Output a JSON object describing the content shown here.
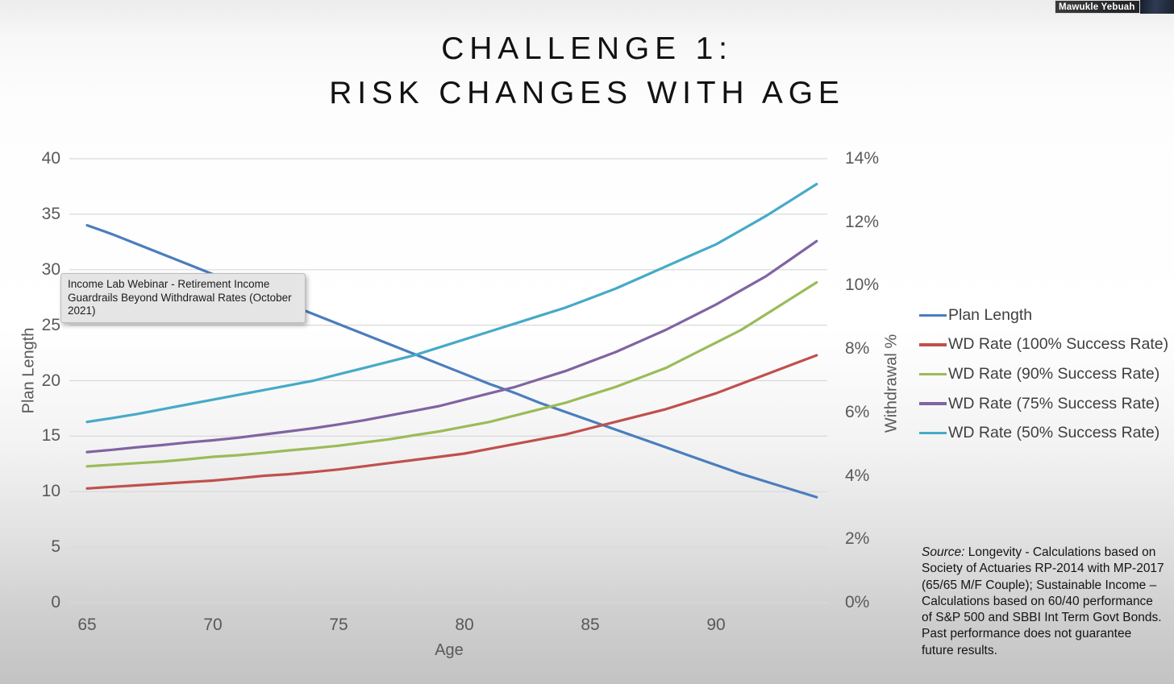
{
  "webcam": {
    "name": "Mawukle Yebuah"
  },
  "title": {
    "line1": "CHALLENGE 1:",
    "line2": "RISK CHANGES WITH AGE"
  },
  "tooltip": {
    "text": "Income Lab Webinar  - Retirement Income Guardrails Beyond Withdrawal Rates (October 2021)"
  },
  "source_note": {
    "label": "Source:",
    "text": " Longevity - Calculations based on Society of Actuaries RP-2014 with MP-2017 (65/65 M/F Couple); Sustainable Income – Calculations based on  60/40 performance of S&P 500 and SBBI Int Term Govt Bonds. Past performance does not guarantee future results."
  },
  "chart_data": {
    "type": "line",
    "title": "CHALLENGE 1: RISK CHANGES WITH AGE",
    "xlabel": "Age",
    "ylabel_left": "Plan Length",
    "ylabel_right": "Withdrawal %",
    "x": [
      65,
      66,
      67,
      68,
      69,
      70,
      71,
      72,
      73,
      74,
      75,
      76,
      77,
      78,
      79,
      80,
      81,
      82,
      83,
      84,
      85,
      86,
      87,
      88,
      89,
      90,
      91,
      92,
      93,
      94
    ],
    "x_ticks": [
      65,
      70,
      75,
      80,
      85,
      90
    ],
    "y_left": {
      "min": 0,
      "max": 40,
      "ticks": [
        40,
        35,
        30,
        25,
        20,
        15,
        10,
        5,
        0
      ]
    },
    "y_right": {
      "min": 0,
      "max": 14,
      "ticks": [
        "14%",
        "12%",
        "10%",
        "8%",
        "6%",
        "4%",
        "2%",
        "0%"
      ]
    },
    "grid": "horizontal",
    "legend_position": "right",
    "series": [
      {
        "name": "Plan Length",
        "axis": "left",
        "color": "#4a7ebd",
        "values": [
          34.0,
          33.2,
          32.3,
          31.4,
          30.5,
          29.6,
          28.7,
          27.8,
          26.9,
          26.0,
          25.1,
          24.2,
          23.3,
          22.4,
          21.5,
          20.6,
          19.7,
          18.9,
          18.0,
          17.2,
          16.4,
          15.6,
          14.8,
          14.0,
          13.2,
          12.4,
          11.6,
          10.9,
          10.2,
          9.5
        ]
      },
      {
        "name": "WD Rate (100% Success Rate)",
        "axis": "right",
        "color": "#c0504d",
        "values": [
          3.6,
          3.65,
          3.7,
          3.75,
          3.8,
          3.85,
          3.92,
          4.0,
          4.05,
          4.12,
          4.2,
          4.3,
          4.4,
          4.5,
          4.6,
          4.7,
          4.85,
          5.0,
          5.15,
          5.3,
          5.5,
          5.7,
          5.9,
          6.1,
          6.35,
          6.6,
          6.9,
          7.2,
          7.5,
          7.8
        ]
      },
      {
        "name": "WD Rate (90% Success Rate)",
        "axis": "right",
        "color": "#9bbb59",
        "values": [
          4.3,
          4.35,
          4.4,
          4.45,
          4.52,
          4.6,
          4.65,
          4.72,
          4.8,
          4.87,
          4.95,
          5.05,
          5.15,
          5.28,
          5.4,
          5.55,
          5.7,
          5.9,
          6.1,
          6.3,
          6.55,
          6.8,
          7.1,
          7.4,
          7.8,
          8.2,
          8.6,
          9.1,
          9.6,
          10.1
        ]
      },
      {
        "name": "WD Rate (75% Success Rate)",
        "axis": "right",
        "color": "#8064a2",
        "values": [
          4.75,
          4.82,
          4.9,
          4.97,
          5.05,
          5.12,
          5.2,
          5.3,
          5.4,
          5.5,
          5.62,
          5.75,
          5.9,
          6.05,
          6.2,
          6.4,
          6.6,
          6.8,
          7.05,
          7.3,
          7.6,
          7.9,
          8.25,
          8.6,
          9.0,
          9.4,
          9.85,
          10.3,
          10.85,
          11.4
        ]
      },
      {
        "name": "WD Rate (50% Success Rate)",
        "axis": "right",
        "color": "#46aac8",
        "values": [
          5.7,
          5.82,
          5.95,
          6.1,
          6.25,
          6.4,
          6.55,
          6.7,
          6.85,
          7.0,
          7.2,
          7.4,
          7.6,
          7.8,
          8.05,
          8.3,
          8.55,
          8.8,
          9.05,
          9.3,
          9.6,
          9.9,
          10.25,
          10.6,
          10.95,
          11.3,
          11.75,
          12.2,
          12.7,
          13.2
        ]
      }
    ]
  }
}
